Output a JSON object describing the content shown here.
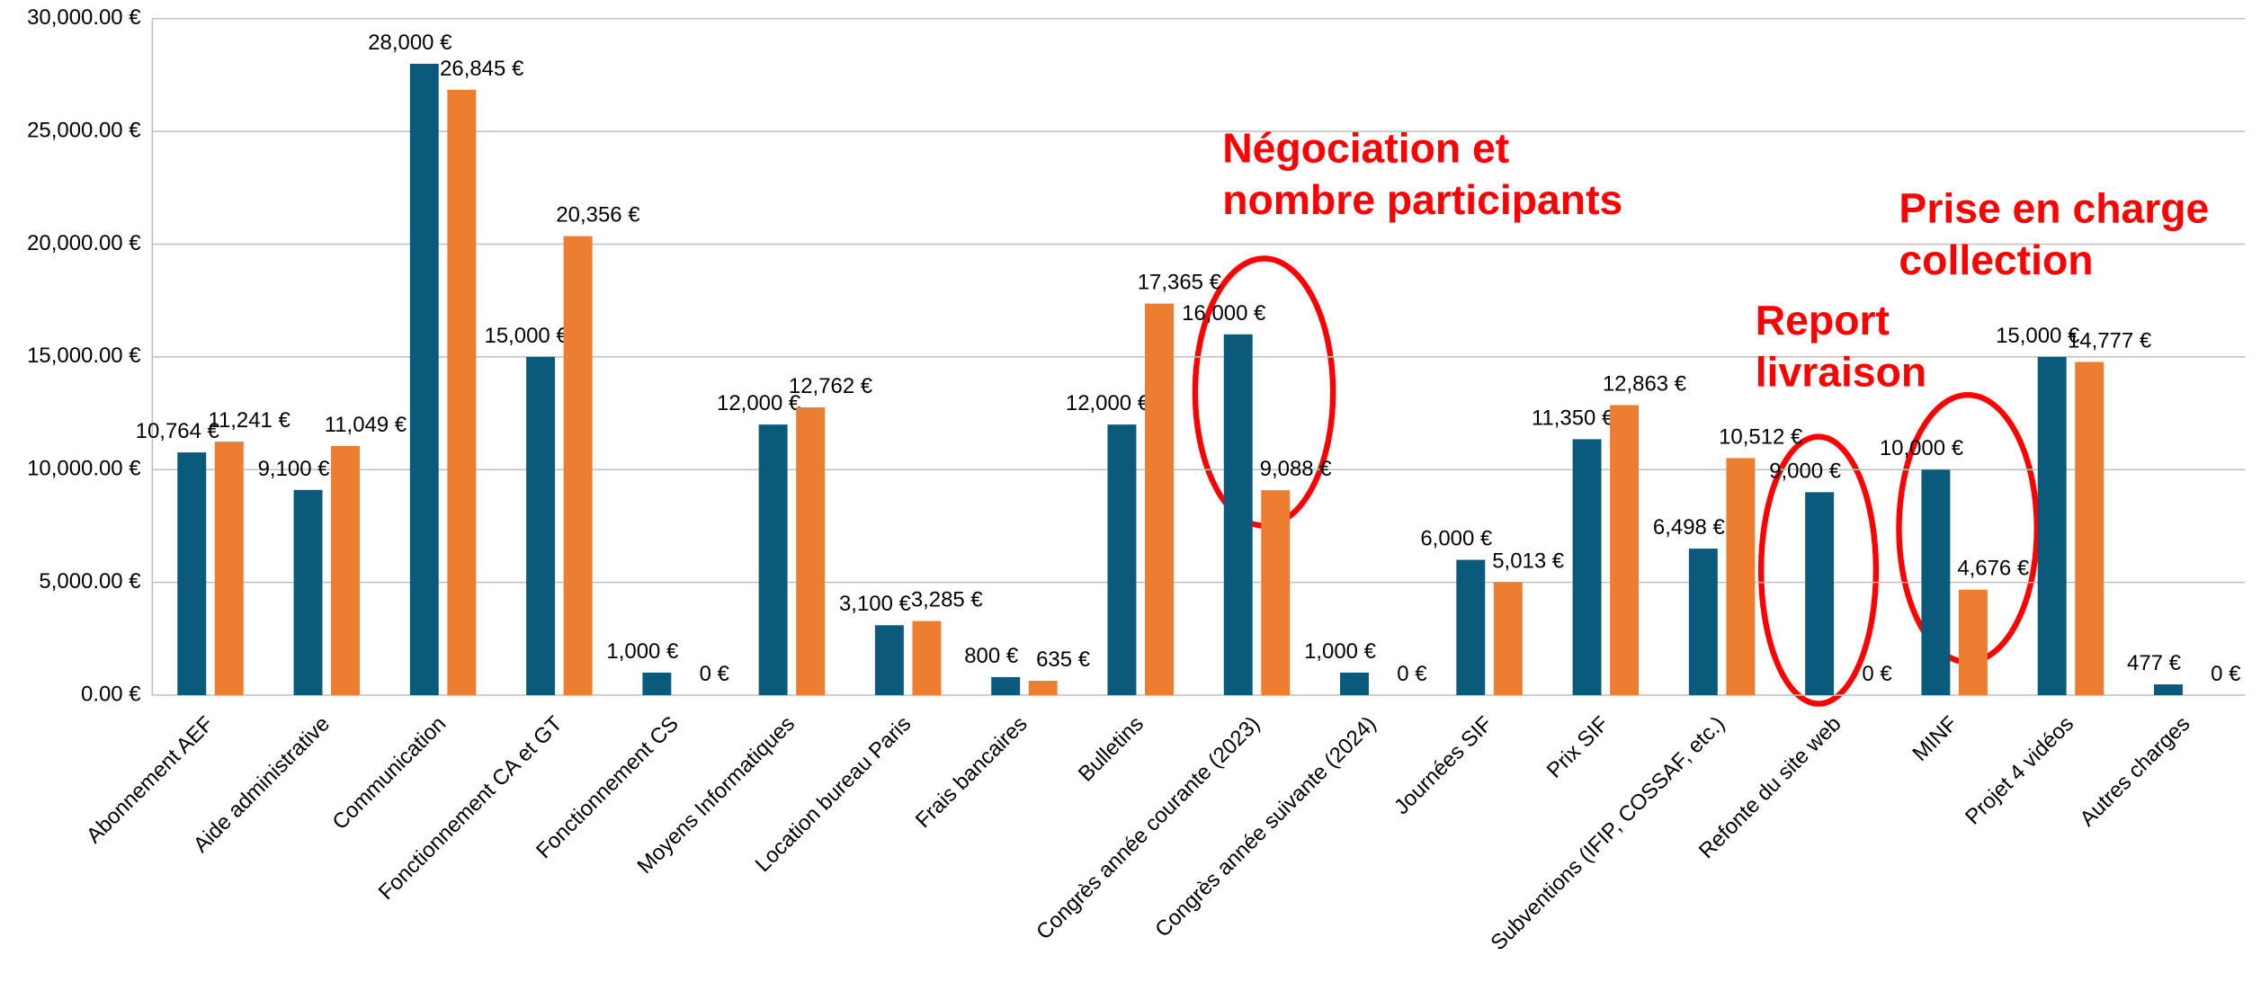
{
  "chart_data": {
    "type": "bar",
    "categories": [
      "Abonnement AEF",
      "Aide administrative",
      "Communication",
      "Fonctionnement CA et GT",
      "Fonctionnement CS",
      "Moyens Informatiques",
      "Location bureau Paris",
      "Frais bancaires",
      "Bulletins",
      "Congrès année courante (2023)",
      "Congrès année suivante (2024)",
      "Journées SIF",
      "Prix SIF",
      "Subventions (IFIP, COSSAF, etc.)",
      "Refonte du site web",
      "MINF",
      "Projet 4 vidéos",
      "Autres charges"
    ],
    "series": [
      {
        "color": "#0b5a7c",
        "values": [
          10764,
          9100,
          28000,
          15000,
          1000,
          12000,
          3100,
          800,
          12000,
          16000,
          1000,
          6000,
          11350,
          6498,
          9000,
          10000,
          15000,
          477
        ],
        "value_labels": [
          "10,764 €",
          "9,100 €",
          "28,000 €",
          "15,000 €",
          "1,000 €",
          "12,000 €",
          "3,100 €",
          "800 €",
          "12,000 €",
          "16,000 €",
          "1,000 €",
          "6,000 €",
          "11,350 €",
          "6,498 €",
          "9,000 €",
          "10,000 €",
          "15,000 €",
          "477 €"
        ]
      },
      {
        "color": "#ed7d31",
        "values": [
          11241,
          11049,
          26845,
          20356,
          0,
          12762,
          3285,
          635,
          17365,
          9088,
          0,
          5013,
          12863,
          10512,
          0,
          4676,
          14777,
          0
        ],
        "value_labels": [
          "11,241 €",
          "11,049 €",
          "26,845 €",
          "20,356 €",
          "0 €",
          "12,762 €",
          "3,285 €",
          "635 €",
          "17,365 €",
          "9,088 €",
          "0 €",
          "5,013 €",
          "12,863 €",
          "10,512 €",
          "0 €",
          "4,676 €",
          "14,777 €",
          "0 €"
        ]
      }
    ],
    "ylim": [
      0,
      30000
    ],
    "yticks": [
      {
        "value": 0,
        "label": "0.00 €"
      },
      {
        "value": 5000,
        "label": "5,000.00 €"
      },
      {
        "value": 10000,
        "label": "10,000.00 €"
      },
      {
        "value": 15000,
        "label": "15,000.00 €"
      },
      {
        "value": 20000,
        "label": "20,000.00 €"
      },
      {
        "value": 25000,
        "label": "25,000.00 €"
      },
      {
        "value": 30000,
        "label": "30,000.00 €"
      }
    ],
    "grid": true,
    "annotations": [
      {
        "lines": [
          "Négociation et",
          "nombre participants"
        ],
        "color": "#ff0000"
      },
      {
        "lines": [
          "Report",
          "livraison"
        ],
        "color": "#ff0000"
      },
      {
        "lines": [
          "Prise en charge",
          "collection"
        ],
        "color": "#ff0000"
      }
    ]
  }
}
